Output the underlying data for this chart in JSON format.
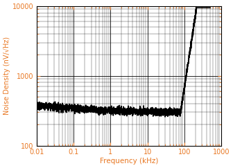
{
  "title": "",
  "xlabel": "Frequency (kHz)",
  "ylabel": "Noise Density (nV/√Hz)",
  "xlim": [
    0.01,
    1000
  ],
  "ylim": [
    100,
    10000
  ],
  "xlabel_color": "#E87722",
  "ylabel_color": "#E87722",
  "tick_color": "#E87722",
  "line_color": "#000000",
  "background_color": "#ffffff",
  "grid_major_color": "#000000",
  "grid_minor_color": "#000000",
  "flat_noise_level": 300,
  "noise_variation_std": 0.05,
  "rise_start_freq": 80,
  "rise_power": 3.5,
  "line_width": 1.2
}
